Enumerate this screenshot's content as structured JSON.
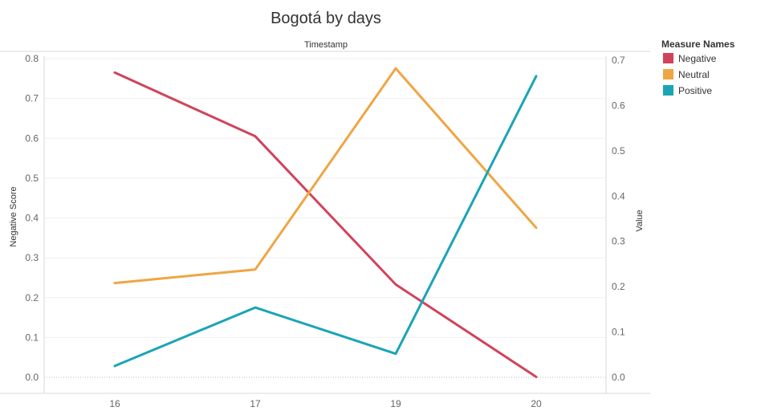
{
  "chart_data": {
    "type": "line",
    "title": "Bogotá by days",
    "x_header": "Timestamp",
    "categories": [
      "16",
      "17",
      "19",
      "20"
    ],
    "left_axis": {
      "label": "Negative Score",
      "ylim": [
        0,
        0.8
      ],
      "ticks": [
        "0.0",
        "0.1",
        "0.2",
        "0.3",
        "0.4",
        "0.5",
        "0.6",
        "0.7",
        "0.8"
      ]
    },
    "right_axis": {
      "label": "Value",
      "ylim": [
        0,
        0.7
      ],
      "ticks": [
        "0.0",
        "0.1",
        "0.2",
        "0.3",
        "0.4",
        "0.5",
        "0.6",
        "0.7"
      ]
    },
    "legend": {
      "title": "Measure Names",
      "placement": "right"
    },
    "series": [
      {
        "name": "Negative",
        "axis": "left",
        "color": "#d1435b",
        "values": [
          0.765,
          0.605,
          0.233,
          0.001
        ]
      },
      {
        "name": "Neutral",
        "axis": "right",
        "color": "#f0a544",
        "values": [
          0.208,
          0.238,
          0.682,
          0.33
        ]
      },
      {
        "name": "Positive",
        "axis": "right",
        "color": "#1aa5b5",
        "values": [
          0.025,
          0.154,
          0.052,
          0.665
        ]
      }
    ],
    "grid": true
  }
}
